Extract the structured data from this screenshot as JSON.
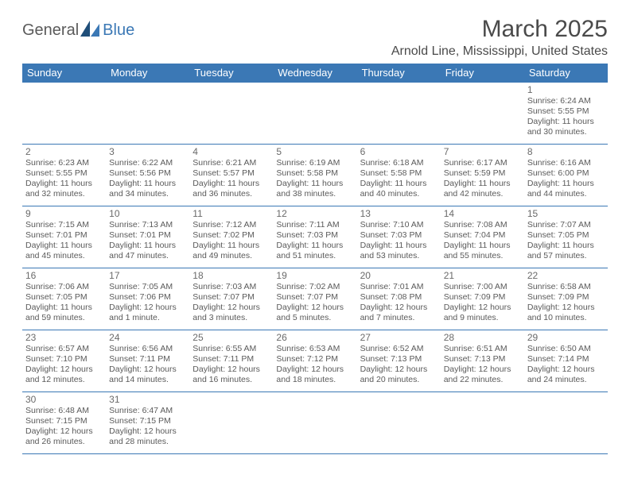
{
  "logo": {
    "part1": "General",
    "part2": "Blue"
  },
  "title": "March 2025",
  "location": "Arnold Line, Mississippi, United States",
  "colors": {
    "header_bg": "#3b78b5",
    "header_fg": "#ffffff",
    "border": "#3b78b5",
    "text": "#4a4a4a",
    "muted": "#5a5a5a"
  },
  "day_names": [
    "Sunday",
    "Monday",
    "Tuesday",
    "Wednesday",
    "Thursday",
    "Friday",
    "Saturday"
  ],
  "weeks": [
    [
      null,
      null,
      null,
      null,
      null,
      null,
      {
        "n": "1",
        "sr": "6:24 AM",
        "ss": "5:55 PM",
        "dl": "11 hours and 30 minutes."
      }
    ],
    [
      {
        "n": "2",
        "sr": "6:23 AM",
        "ss": "5:55 PM",
        "dl": "11 hours and 32 minutes."
      },
      {
        "n": "3",
        "sr": "6:22 AM",
        "ss": "5:56 PM",
        "dl": "11 hours and 34 minutes."
      },
      {
        "n": "4",
        "sr": "6:21 AM",
        "ss": "5:57 PM",
        "dl": "11 hours and 36 minutes."
      },
      {
        "n": "5",
        "sr": "6:19 AM",
        "ss": "5:58 PM",
        "dl": "11 hours and 38 minutes."
      },
      {
        "n": "6",
        "sr": "6:18 AM",
        "ss": "5:58 PM",
        "dl": "11 hours and 40 minutes."
      },
      {
        "n": "7",
        "sr": "6:17 AM",
        "ss": "5:59 PM",
        "dl": "11 hours and 42 minutes."
      },
      {
        "n": "8",
        "sr": "6:16 AM",
        "ss": "6:00 PM",
        "dl": "11 hours and 44 minutes."
      }
    ],
    [
      {
        "n": "9",
        "sr": "7:15 AM",
        "ss": "7:01 PM",
        "dl": "11 hours and 45 minutes."
      },
      {
        "n": "10",
        "sr": "7:13 AM",
        "ss": "7:01 PM",
        "dl": "11 hours and 47 minutes."
      },
      {
        "n": "11",
        "sr": "7:12 AM",
        "ss": "7:02 PM",
        "dl": "11 hours and 49 minutes."
      },
      {
        "n": "12",
        "sr": "7:11 AM",
        "ss": "7:03 PM",
        "dl": "11 hours and 51 minutes."
      },
      {
        "n": "13",
        "sr": "7:10 AM",
        "ss": "7:03 PM",
        "dl": "11 hours and 53 minutes."
      },
      {
        "n": "14",
        "sr": "7:08 AM",
        "ss": "7:04 PM",
        "dl": "11 hours and 55 minutes."
      },
      {
        "n": "15",
        "sr": "7:07 AM",
        "ss": "7:05 PM",
        "dl": "11 hours and 57 minutes."
      }
    ],
    [
      {
        "n": "16",
        "sr": "7:06 AM",
        "ss": "7:05 PM",
        "dl": "11 hours and 59 minutes."
      },
      {
        "n": "17",
        "sr": "7:05 AM",
        "ss": "7:06 PM",
        "dl": "12 hours and 1 minute."
      },
      {
        "n": "18",
        "sr": "7:03 AM",
        "ss": "7:07 PM",
        "dl": "12 hours and 3 minutes."
      },
      {
        "n": "19",
        "sr": "7:02 AM",
        "ss": "7:07 PM",
        "dl": "12 hours and 5 minutes."
      },
      {
        "n": "20",
        "sr": "7:01 AM",
        "ss": "7:08 PM",
        "dl": "12 hours and 7 minutes."
      },
      {
        "n": "21",
        "sr": "7:00 AM",
        "ss": "7:09 PM",
        "dl": "12 hours and 9 minutes."
      },
      {
        "n": "22",
        "sr": "6:58 AM",
        "ss": "7:09 PM",
        "dl": "12 hours and 10 minutes."
      }
    ],
    [
      {
        "n": "23",
        "sr": "6:57 AM",
        "ss": "7:10 PM",
        "dl": "12 hours and 12 minutes."
      },
      {
        "n": "24",
        "sr": "6:56 AM",
        "ss": "7:11 PM",
        "dl": "12 hours and 14 minutes."
      },
      {
        "n": "25",
        "sr": "6:55 AM",
        "ss": "7:11 PM",
        "dl": "12 hours and 16 minutes."
      },
      {
        "n": "26",
        "sr": "6:53 AM",
        "ss": "7:12 PM",
        "dl": "12 hours and 18 minutes."
      },
      {
        "n": "27",
        "sr": "6:52 AM",
        "ss": "7:13 PM",
        "dl": "12 hours and 20 minutes."
      },
      {
        "n": "28",
        "sr": "6:51 AM",
        "ss": "7:13 PM",
        "dl": "12 hours and 22 minutes."
      },
      {
        "n": "29",
        "sr": "6:50 AM",
        "ss": "7:14 PM",
        "dl": "12 hours and 24 minutes."
      }
    ],
    [
      {
        "n": "30",
        "sr": "6:48 AM",
        "ss": "7:15 PM",
        "dl": "12 hours and 26 minutes."
      },
      {
        "n": "31",
        "sr": "6:47 AM",
        "ss": "7:15 PM",
        "dl": "12 hours and 28 minutes."
      },
      null,
      null,
      null,
      null,
      null
    ]
  ],
  "labels": {
    "sunrise": "Sunrise: ",
    "sunset": "Sunset: ",
    "daylight": "Daylight: "
  }
}
